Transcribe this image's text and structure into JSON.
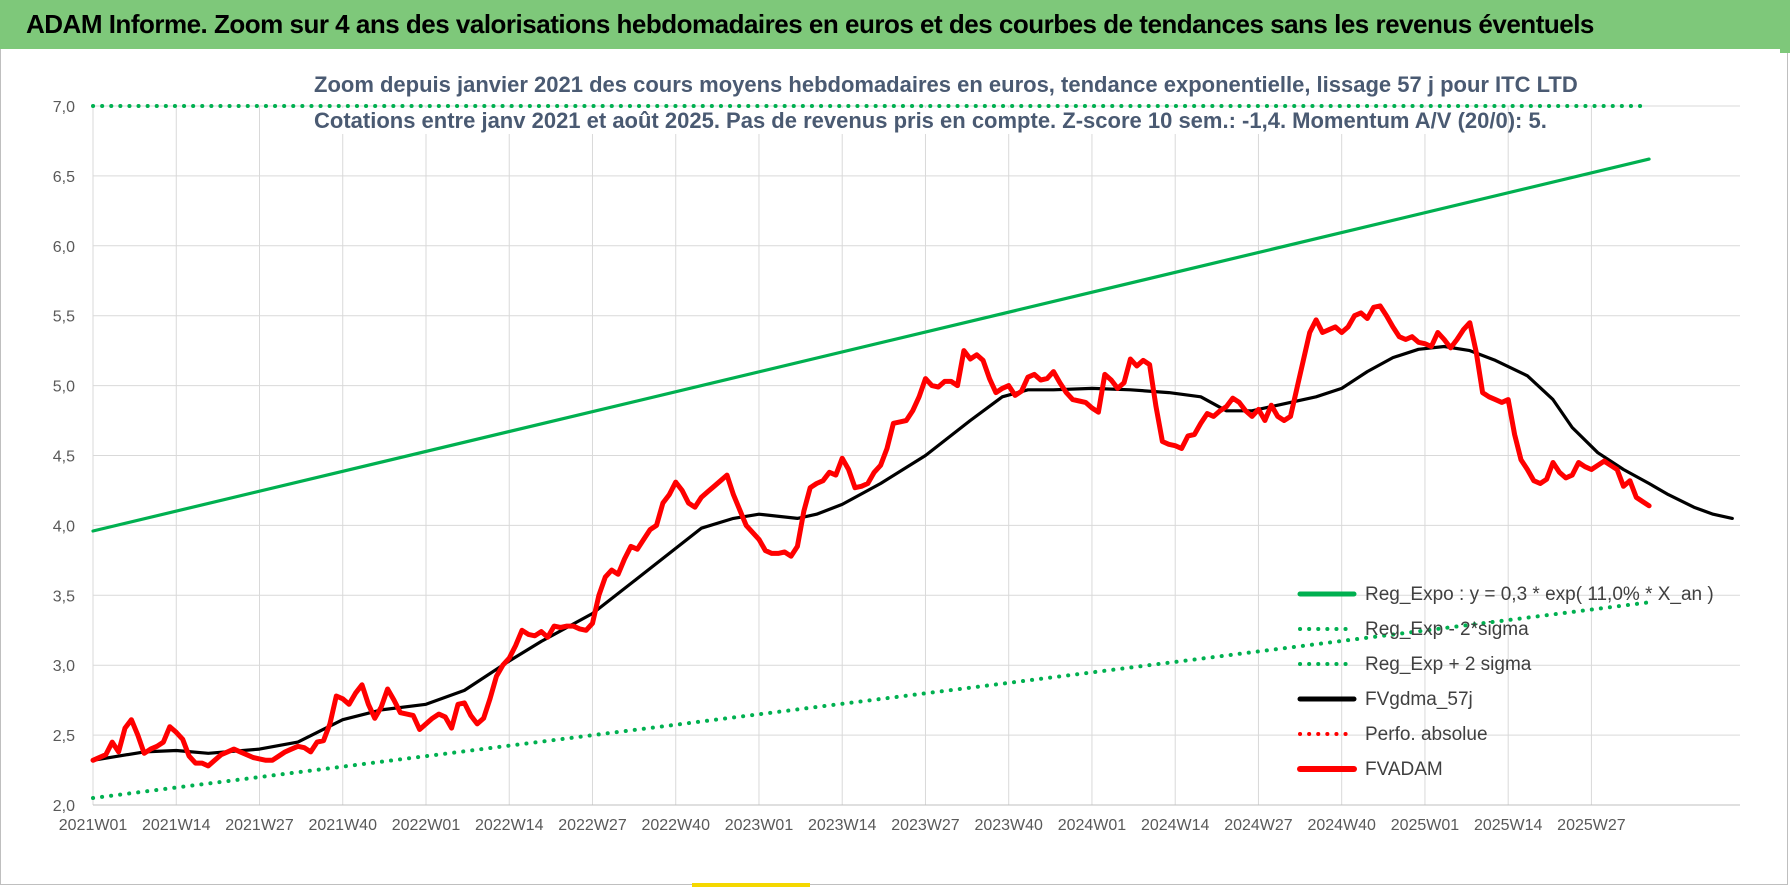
{
  "header": {
    "title": "ADAM Informe. Zoom sur 4 ans des valorisations hebdomadaires en euros et des courbes de tendances sans les revenus éventuels"
  },
  "colors": {
    "header_bg": "#7ec87a",
    "reg_expo": "#00b050",
    "fvgdma": "#000000",
    "fvadam": "#ff0000",
    "perfo": "#ff0000",
    "grid": "#d9d9d9",
    "subtitle": "#4a5a72"
  },
  "chart_data": {
    "type": "line",
    "title": "Zoom depuis janvier 2021 des cours moyens hebdomadaires en euros, tendance exponentielle, lissage 57 j pour ITC LTD",
    "subtitle": "Cotations entre janv 2021 et août 2025.  Pas de revenus pris en compte. Z-score 10 sem.: -1,4. Momentum A/V (20/0): 5.",
    "ylim": [
      2.0,
      7.0
    ],
    "ytick_labels": [
      "2,0",
      "2,5",
      "3,0",
      "3,5",
      "4,0",
      "4,5",
      "5,0",
      "5,5",
      "6,0",
      "6,5",
      "7,0"
    ],
    "xtick_labels": [
      "2021W01",
      "2021W14",
      "2021W27",
      "2021W40",
      "2022W01",
      "2022W14",
      "2022W27",
      "2022W40",
      "2023W01",
      "2023W14",
      "2023W27",
      "2023W40",
      "2024W01",
      "2024W14",
      "2024W27",
      "2024W40",
      "2025W01",
      "2025W14",
      "2025W27"
    ],
    "n_weeks": 244,
    "grid": true,
    "legend_position": "bottom-right",
    "series": [
      {
        "name": "Reg_Expo : y = 0,3 * exp( 11,0% *  X_an )",
        "style": "solid",
        "color": "#00b050",
        "points": [
          [
            0,
            3.96
          ],
          [
            243,
            6.62
          ]
        ]
      },
      {
        "name": "Reg_Exp - 2*sigma",
        "style": "dotted",
        "color": "#00b050",
        "points": [
          [
            0,
            2.05
          ],
          [
            243,
            3.45
          ]
        ]
      },
      {
        "name": "Reg_Exp + 2 sigma",
        "style": "dotted",
        "color": "#00b050",
        "points": [
          [
            0,
            7.0
          ],
          [
            243,
            7.0
          ]
        ]
      },
      {
        "name": "FVgdma_57j",
        "style": "solid",
        "color": "#000000",
        "points": [
          [
            0,
            2.32
          ],
          [
            8,
            2.38
          ],
          [
            13,
            2.39
          ],
          [
            18,
            2.37
          ],
          [
            26,
            2.4
          ],
          [
            32,
            2.45
          ],
          [
            39,
            2.61
          ],
          [
            45,
            2.68
          ],
          [
            52,
            2.72
          ],
          [
            58,
            2.82
          ],
          [
            65,
            3.03
          ],
          [
            70,
            3.17
          ],
          [
            78,
            3.37
          ],
          [
            85,
            3.62
          ],
          [
            90,
            3.8
          ],
          [
            95,
            3.98
          ],
          [
            100,
            4.05
          ],
          [
            104,
            4.08
          ],
          [
            110,
            4.05
          ],
          [
            113,
            4.08
          ],
          [
            117,
            4.15
          ],
          [
            123,
            4.3
          ],
          [
            130,
            4.5
          ],
          [
            137,
            4.75
          ],
          [
            142,
            4.92
          ],
          [
            146,
            4.97
          ],
          [
            150,
            4.97
          ],
          [
            156,
            4.98
          ],
          [
            162,
            4.97
          ],
          [
            168,
            4.95
          ],
          [
            173,
            4.92
          ],
          [
            177,
            4.82
          ],
          [
            181,
            4.82
          ],
          [
            186,
            4.87
          ],
          [
            191,
            4.92
          ],
          [
            195,
            4.98
          ],
          [
            199,
            5.1
          ],
          [
            203,
            5.2
          ],
          [
            207,
            5.26
          ],
          [
            211,
            5.28
          ],
          [
            215,
            5.25
          ],
          [
            219,
            5.18
          ],
          [
            224,
            5.07
          ],
          [
            228,
            4.9
          ],
          [
            231,
            4.7
          ],
          [
            235,
            4.52
          ],
          [
            239,
            4.4
          ],
          [
            243,
            4.3
          ],
          [
            246,
            4.22
          ],
          [
            250,
            4.13
          ],
          [
            253,
            4.08
          ],
          [
            256,
            4.05
          ]
        ]
      },
      {
        "name": "Perfo. absolue",
        "style": "dotted",
        "color": "#ff0000",
        "points": []
      },
      {
        "name": "FVADAM",
        "style": "solid-thick",
        "color": "#ff0000",
        "points": [
          [
            0,
            2.32
          ],
          [
            2,
            2.36
          ],
          [
            3,
            2.45
          ],
          [
            4,
            2.38
          ],
          [
            5,
            2.55
          ],
          [
            6,
            2.61
          ],
          [
            7,
            2.5
          ],
          [
            8,
            2.37
          ],
          [
            9,
            2.4
          ],
          [
            10,
            2.42
          ],
          [
            11,
            2.45
          ],
          [
            12,
            2.56
          ],
          [
            13,
            2.52
          ],
          [
            14,
            2.47
          ],
          [
            15,
            2.35
          ],
          [
            16,
            2.3
          ],
          [
            17,
            2.3
          ],
          [
            18,
            2.28
          ],
          [
            19,
            2.32
          ],
          [
            20,
            2.36
          ],
          [
            21,
            2.38
          ],
          [
            22,
            2.4
          ],
          [
            23,
            2.38
          ],
          [
            24,
            2.36
          ],
          [
            25,
            2.34
          ],
          [
            26,
            2.33
          ],
          [
            27,
            2.32
          ],
          [
            28,
            2.32
          ],
          [
            29,
            2.35
          ],
          [
            30,
            2.38
          ],
          [
            31,
            2.4
          ],
          [
            32,
            2.42
          ],
          [
            33,
            2.41
          ],
          [
            34,
            2.38
          ],
          [
            35,
            2.45
          ],
          [
            36,
            2.46
          ],
          [
            37,
            2.58
          ],
          [
            38,
            2.78
          ],
          [
            39,
            2.76
          ],
          [
            40,
            2.72
          ],
          [
            41,
            2.8
          ],
          [
            42,
            2.86
          ],
          [
            43,
            2.72
          ],
          [
            44,
            2.62
          ],
          [
            45,
            2.7
          ],
          [
            46,
            2.83
          ],
          [
            47,
            2.75
          ],
          [
            48,
            2.66
          ],
          [
            49,
            2.65
          ],
          [
            50,
            2.64
          ],
          [
            51,
            2.54
          ],
          [
            52,
            2.58
          ],
          [
            53,
            2.62
          ],
          [
            54,
            2.65
          ],
          [
            55,
            2.63
          ],
          [
            56,
            2.55
          ],
          [
            57,
            2.72
          ],
          [
            58,
            2.73
          ],
          [
            59,
            2.64
          ],
          [
            60,
            2.58
          ],
          [
            61,
            2.62
          ],
          [
            62,
            2.76
          ],
          [
            63,
            2.92
          ],
          [
            64,
            3.0
          ],
          [
            65,
            3.05
          ],
          [
            66,
            3.14
          ],
          [
            67,
            3.25
          ],
          [
            68,
            3.22
          ],
          [
            69,
            3.21
          ],
          [
            70,
            3.24
          ],
          [
            71,
            3.2
          ],
          [
            72,
            3.28
          ],
          [
            73,
            3.27
          ],
          [
            74,
            3.28
          ],
          [
            75,
            3.28
          ],
          [
            76,
            3.26
          ],
          [
            77,
            3.25
          ],
          [
            78,
            3.3
          ],
          [
            79,
            3.5
          ],
          [
            80,
            3.63
          ],
          [
            81,
            3.68
          ],
          [
            82,
            3.65
          ],
          [
            83,
            3.76
          ],
          [
            84,
            3.85
          ],
          [
            85,
            3.83
          ],
          [
            86,
            3.9
          ],
          [
            87,
            3.97
          ],
          [
            88,
            4.0
          ],
          [
            89,
            4.16
          ],
          [
            90,
            4.22
          ],
          [
            91,
            4.31
          ],
          [
            92,
            4.25
          ],
          [
            93,
            4.16
          ],
          [
            94,
            4.13
          ],
          [
            95,
            4.2
          ],
          [
            96,
            4.24
          ],
          [
            97,
            4.28
          ],
          [
            98,
            4.32
          ],
          [
            99,
            4.36
          ],
          [
            100,
            4.22
          ],
          [
            101,
            4.11
          ],
          [
            102,
            4.0
          ],
          [
            103,
            3.95
          ],
          [
            104,
            3.9
          ],
          [
            105,
            3.82
          ],
          [
            106,
            3.8
          ],
          [
            107,
            3.8
          ],
          [
            108,
            3.81
          ],
          [
            109,
            3.78
          ],
          [
            110,
            3.85
          ],
          [
            111,
            4.1
          ],
          [
            112,
            4.27
          ],
          [
            113,
            4.3
          ],
          [
            114,
            4.32
          ],
          [
            115,
            4.38
          ],
          [
            116,
            4.36
          ],
          [
            117,
            4.48
          ],
          [
            118,
            4.4
          ],
          [
            119,
            4.27
          ],
          [
            120,
            4.28
          ],
          [
            121,
            4.3
          ],
          [
            122,
            4.38
          ],
          [
            123,
            4.43
          ],
          [
            124,
            4.55
          ],
          [
            125,
            4.73
          ],
          [
            126,
            4.74
          ],
          [
            127,
            4.75
          ],
          [
            128,
            4.82
          ],
          [
            129,
            4.92
          ],
          [
            130,
            5.05
          ],
          [
            131,
            5.0
          ],
          [
            132,
            4.99
          ],
          [
            133,
            5.03
          ],
          [
            134,
            5.03
          ],
          [
            135,
            5.0
          ],
          [
            136,
            5.25
          ],
          [
            137,
            5.19
          ],
          [
            138,
            5.22
          ],
          [
            139,
            5.18
          ],
          [
            140,
            5.05
          ],
          [
            141,
            4.95
          ],
          [
            142,
            4.98
          ],
          [
            143,
            5.0
          ],
          [
            144,
            4.93
          ],
          [
            145,
            4.96
          ],
          [
            146,
            5.06
          ],
          [
            147,
            5.08
          ],
          [
            148,
            5.04
          ],
          [
            149,
            5.05
          ],
          [
            150,
            5.1
          ],
          [
            151,
            5.02
          ],
          [
            152,
            4.95
          ],
          [
            153,
            4.9
          ],
          [
            154,
            4.89
          ],
          [
            155,
            4.88
          ],
          [
            156,
            4.84
          ],
          [
            157,
            4.81
          ],
          [
            158,
            5.08
          ],
          [
            159,
            5.04
          ],
          [
            160,
            4.98
          ],
          [
            161,
            5.02
          ],
          [
            162,
            5.19
          ],
          [
            163,
            5.14
          ],
          [
            164,
            5.18
          ],
          [
            165,
            5.15
          ],
          [
            166,
            4.85
          ],
          [
            167,
            4.6
          ],
          [
            168,
            4.58
          ],
          [
            169,
            4.57
          ],
          [
            170,
            4.55
          ],
          [
            171,
            4.64
          ],
          [
            172,
            4.65
          ],
          [
            173,
            4.73
          ],
          [
            174,
            4.8
          ],
          [
            175,
            4.78
          ],
          [
            176,
            4.82
          ],
          [
            177,
            4.85
          ],
          [
            178,
            4.91
          ],
          [
            179,
            4.88
          ],
          [
            180,
            4.82
          ],
          [
            181,
            4.78
          ],
          [
            182,
            4.83
          ],
          [
            183,
            4.75
          ],
          [
            184,
            4.86
          ],
          [
            185,
            4.78
          ],
          [
            186,
            4.75
          ],
          [
            187,
            4.78
          ],
          [
            188,
            4.98
          ],
          [
            189,
            5.18
          ],
          [
            190,
            5.38
          ],
          [
            191,
            5.47
          ],
          [
            192,
            5.38
          ],
          [
            193,
            5.4
          ],
          [
            194,
            5.42
          ],
          [
            195,
            5.38
          ],
          [
            196,
            5.42
          ],
          [
            197,
            5.5
          ],
          [
            198,
            5.52
          ],
          [
            199,
            5.48
          ],
          [
            200,
            5.56
          ],
          [
            201,
            5.57
          ],
          [
            202,
            5.5
          ],
          [
            203,
            5.42
          ],
          [
            204,
            5.35
          ],
          [
            205,
            5.33
          ],
          [
            206,
            5.35
          ],
          [
            207,
            5.31
          ],
          [
            208,
            5.3
          ],
          [
            209,
            5.28
          ],
          [
            210,
            5.38
          ],
          [
            211,
            5.33
          ],
          [
            212,
            5.27
          ],
          [
            213,
            5.33
          ],
          [
            214,
            5.4
          ],
          [
            215,
            5.45
          ],
          [
            216,
            5.24
          ],
          [
            217,
            4.95
          ],
          [
            218,
            4.92
          ],
          [
            219,
            4.9
          ],
          [
            220,
            4.88
          ],
          [
            221,
            4.9
          ],
          [
            222,
            4.65
          ],
          [
            223,
            4.47
          ],
          [
            224,
            4.4
          ],
          [
            225,
            4.32
          ],
          [
            226,
            4.3
          ],
          [
            227,
            4.33
          ],
          [
            228,
            4.45
          ],
          [
            229,
            4.38
          ],
          [
            230,
            4.34
          ],
          [
            231,
            4.36
          ],
          [
            232,
            4.45
          ],
          [
            233,
            4.42
          ],
          [
            234,
            4.4
          ],
          [
            235,
            4.43
          ],
          [
            236,
            4.46
          ],
          [
            237,
            4.43
          ],
          [
            238,
            4.4
          ],
          [
            239,
            4.28
          ],
          [
            240,
            4.32
          ],
          [
            241,
            4.2
          ],
          [
            242,
            4.17
          ],
          [
            243,
            4.14
          ]
        ]
      }
    ]
  }
}
